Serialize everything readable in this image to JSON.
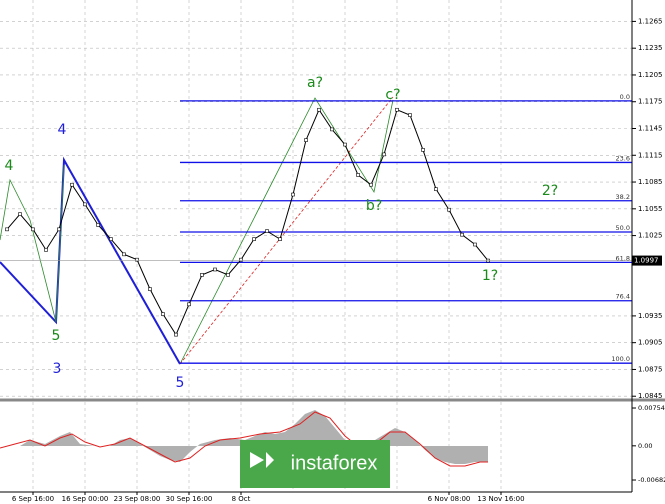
{
  "chart_data": [
    {
      "type": "line",
      "categories": [
        null,
        null,
        "6 Sep 16:00",
        null,
        null,
        null,
        "16 Sep 00:00",
        null,
        null,
        null,
        "23 Sep 08:00",
        null,
        null,
        null,
        "30 Sep 16:00",
        null,
        null,
        null,
        "8 Oct",
        null,
        null,
        null,
        null,
        null,
        null,
        null,
        null,
        null,
        null,
        null,
        null,
        null,
        null,
        null,
        "6 Nov 08:00",
        null,
        null,
        null,
        "13 Nov 16:00"
      ],
      "values": [
        1.1032,
        1.1049,
        1.1032,
        1.1009,
        1.1032,
        1.1082,
        1.106,
        1.1037,
        1.1021,
        1.1004,
        1.0998,
        1.0965,
        1.0937,
        1.0914,
        1.0948,
        1.0981,
        1.0987,
        1.0981,
        1.0998,
        1.1021,
        1.103,
        1.1021,
        1.1071,
        1.1132,
        1.1166,
        1.1144,
        1.1127,
        1.1093,
        1.1082,
        1.1116,
        1.1166,
        1.116,
        1.1121,
        1.1077,
        1.1054,
        1.1026,
        1.1015,
        1.0997,
        null
      ],
      "color": "#000000",
      "ylim": [
        1.0843,
        1.1289
      ],
      "yticks": [
        1.1265,
        1.1235,
        1.1205,
        1.1175,
        1.1145,
        1.1115,
        1.1085,
        1.1055,
        1.1025,
        1.0935,
        1.0905,
        1.0875,
        1.0845
      ],
      "grid": true,
      "current_price": 1.0997,
      "fib_levels": [
        {
          "ratio": {
            "value": 0,
            "label": "0.0"
          },
          "price": 1.1176
        },
        {
          "ratio": 23.6,
          "price": 1.1107
        },
        {
          "ratio": 38.2,
          "price": 1.1064
        },
        {
          "ratio": {
            "value": 50,
            "label": "50.0"
          },
          "price": 1.1029
        },
        {
          "ratio": 61.8,
          "price": 1.0995
        },
        {
          "ratio": 76.4,
          "price": 1.0952
        },
        {
          "ratio": {
            "value": 100,
            "label": "100.0"
          },
          "price": 1.0882
        }
      ],
      "annotations": [
        "a?",
        "c?",
        "b?",
        "2?",
        "1?",
        "4",
        "4",
        "5",
        "3",
        "5"
      ]
    },
    {
      "type": "indicator",
      "ylim": [
        -0.00921,
        0.00874
      ],
      "yticks": [
        0.00754,
        {
          "value": 0,
          "label": "0.00"
        },
        -0.00682
      ]
    }
  ],
  "watermark": "instaforex"
}
